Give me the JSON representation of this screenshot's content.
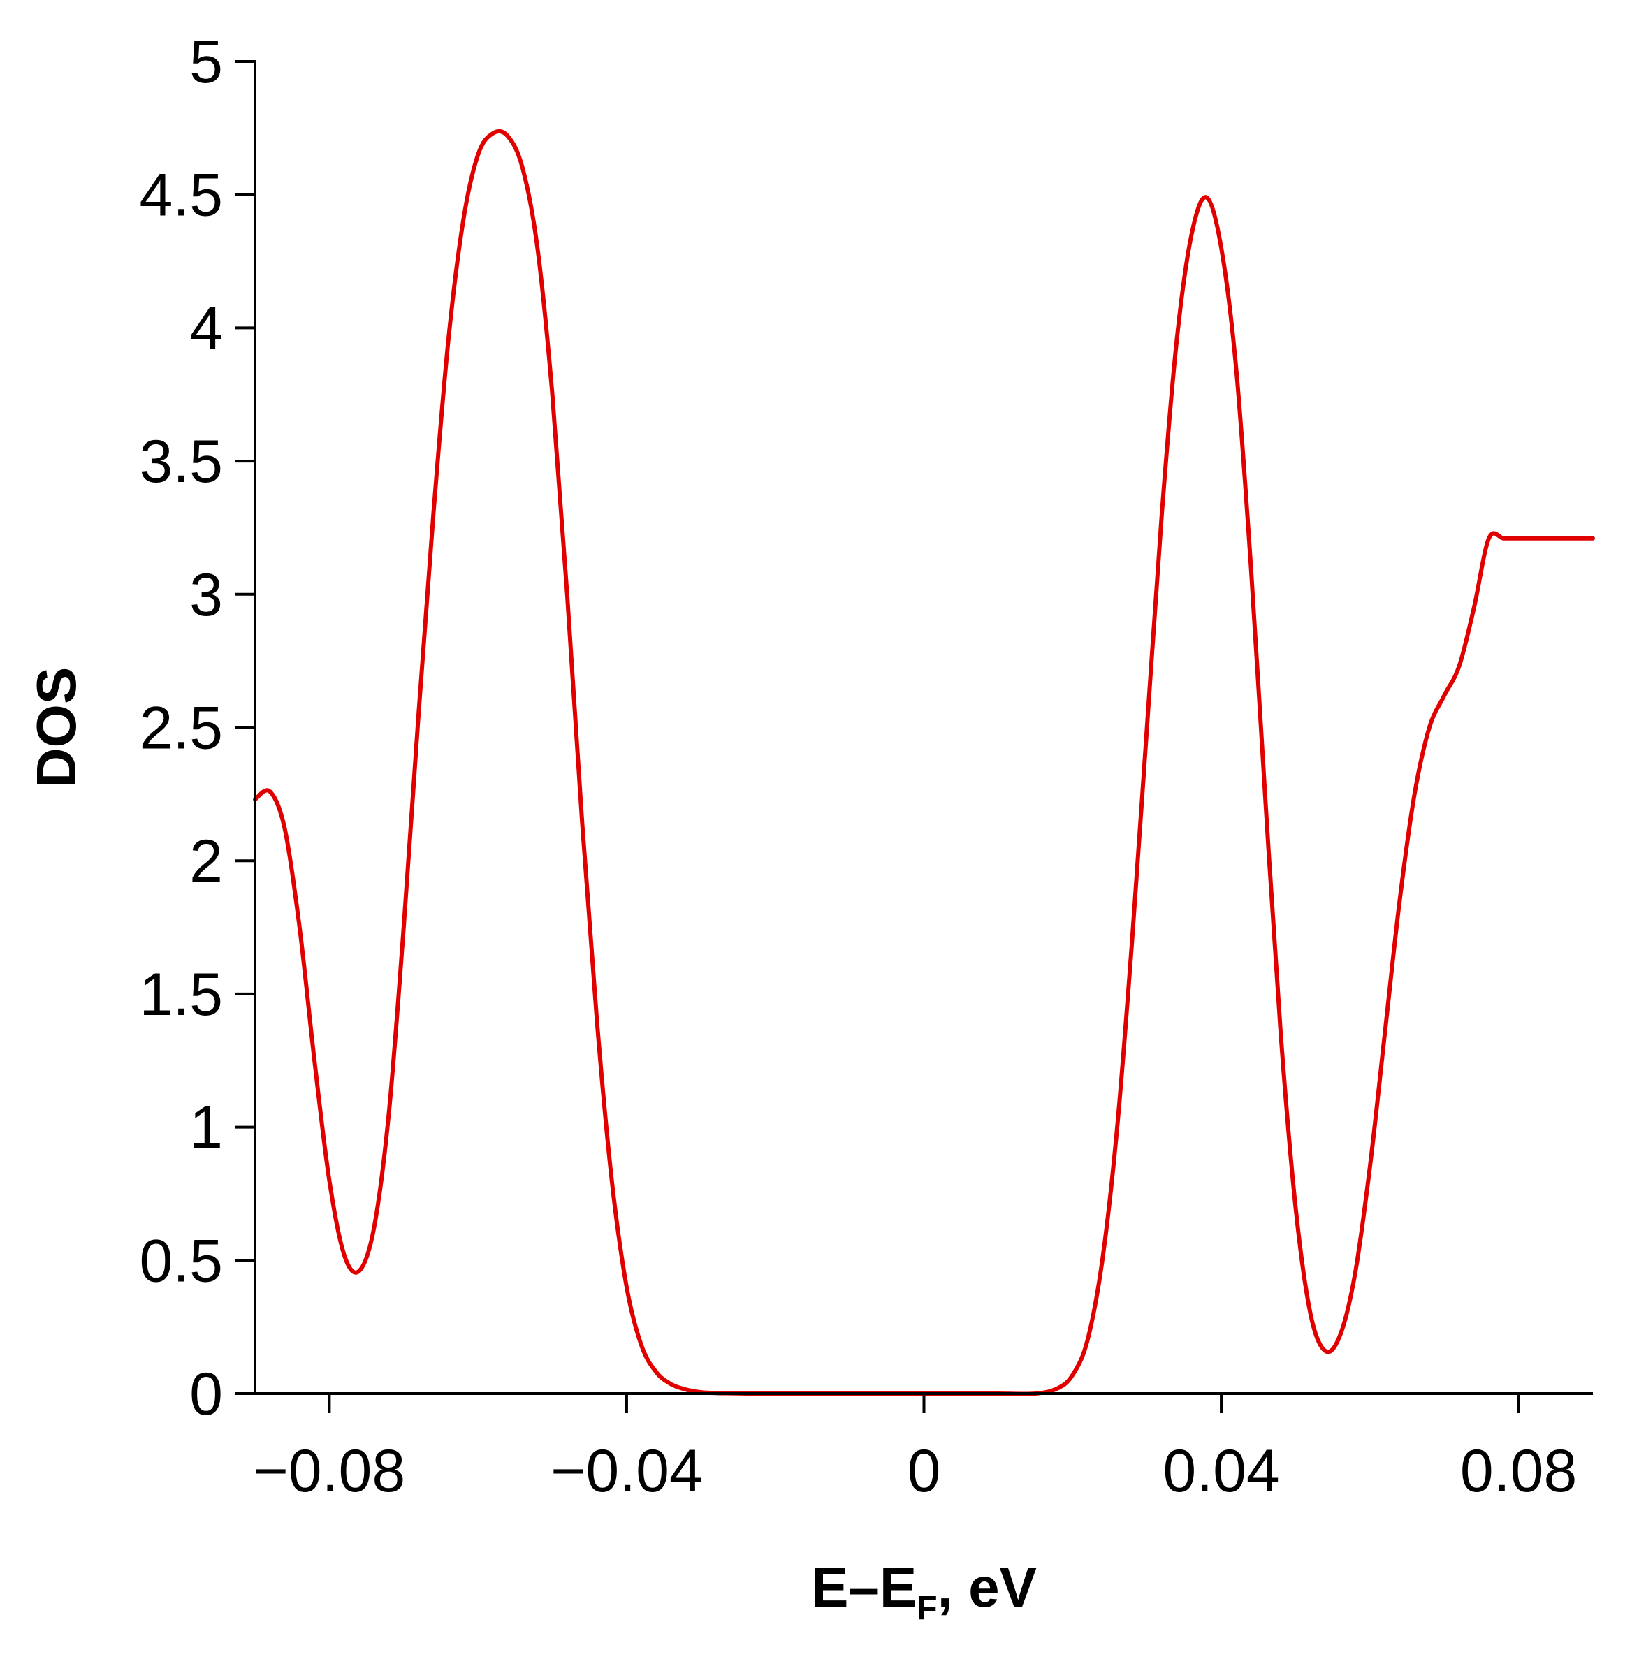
{
  "chart_data": {
    "type": "line",
    "title": "",
    "ylabel": "DOS",
    "xlabel": {
      "main": "E–E",
      "subscript": "F",
      "suffix": ", eV"
    },
    "xlim": [
      -0.09,
      0.09
    ],
    "ylim": [
      0,
      5
    ],
    "x_ticks": [
      -0.08,
      -0.04,
      0,
      0.04,
      0.08
    ],
    "x_tick_labels": [
      "−0.08",
      "−0.04",
      "0",
      "0.04",
      "0.08"
    ],
    "y_ticks": [
      0,
      0.5,
      1,
      1.5,
      2,
      2.5,
      3,
      3.5,
      4,
      4.5,
      5
    ],
    "y_tick_labels": [
      "0",
      "0.5",
      "1",
      "1.5",
      "2",
      "2.5",
      "3",
      "3.5",
      "4",
      "4.5",
      "5"
    ],
    "grid": false,
    "legend": "none",
    "series": [
      {
        "color": "#e00000",
        "x": [
          -0.09,
          -0.088,
          -0.086,
          -0.084,
          -0.082,
          -0.08,
          -0.078,
          -0.076,
          -0.074,
          -0.072,
          -0.07,
          -0.068,
          -0.066,
          -0.064,
          -0.062,
          -0.06,
          -0.058,
          -0.056,
          -0.054,
          -0.052,
          -0.05,
          -0.048,
          -0.046,
          -0.044,
          -0.042,
          -0.04,
          -0.038,
          -0.036,
          -0.034,
          -0.032,
          -0.03,
          -0.028,
          -0.026,
          -0.024,
          -0.022,
          -0.02,
          -0.015,
          -0.01,
          -0.005,
          0,
          0.005,
          0.01,
          0.015,
          0.018,
          0.02,
          0.022,
          0.024,
          0.026,
          0.028,
          0.03,
          0.032,
          0.034,
          0.036,
          0.038,
          0.04,
          0.042,
          0.044,
          0.046,
          0.048,
          0.05,
          0.052,
          0.054,
          0.056,
          0.058,
          0.06,
          0.062,
          0.064,
          0.066,
          0.068,
          0.07,
          0.072,
          0.074,
          0.076,
          0.078,
          0.08,
          0.082,
          0.084,
          0.086,
          0.088,
          0.09
        ],
        "y": [
          2.23,
          2.26,
          2.12,
          1.75,
          1.25,
          0.8,
          0.52,
          0.46,
          0.62,
          1.05,
          1.75,
          2.55,
          3.3,
          3.95,
          4.4,
          4.65,
          4.73,
          4.72,
          4.6,
          4.3,
          3.75,
          3.0,
          2.15,
          1.4,
          0.8,
          0.4,
          0.18,
          0.08,
          0.035,
          0.015,
          0.005,
          0.002,
          0.001,
          0.0,
          0.0,
          0.0,
          0.0,
          0.0,
          0.0,
          0.0,
          0.0,
          0.0,
          0.0,
          0.02,
          0.07,
          0.2,
          0.5,
          1.0,
          1.7,
          2.5,
          3.3,
          3.95,
          4.35,
          4.49,
          4.3,
          3.85,
          3.1,
          2.2,
          1.35,
          0.7,
          0.3,
          0.16,
          0.22,
          0.45,
          0.85,
          1.35,
          1.85,
          2.25,
          2.5,
          2.62,
          2.73,
          2.95,
          3.21,
          3.21,
          3.21,
          3.21,
          3.21,
          3.21,
          3.21,
          3.21
        ]
      }
    ]
  }
}
